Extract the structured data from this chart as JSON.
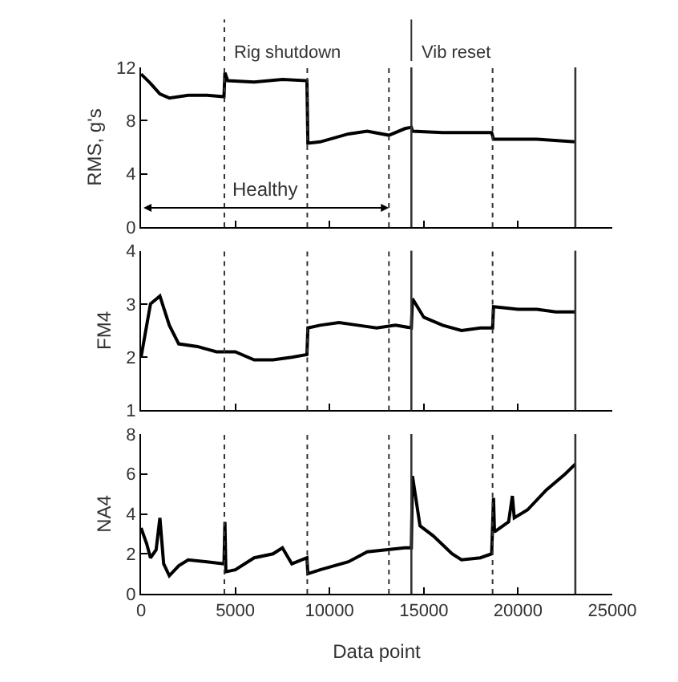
{
  "chart_data": [
    {
      "type": "line",
      "ylabel": "RMS, g's",
      "xlim": [
        0,
        25000
      ],
      "xticks": [
        {
          "value": 0,
          "label": null
        },
        {
          "value": 5000,
          "label": null
        },
        {
          "value": 10000,
          "label": null
        },
        {
          "value": 15000,
          "label": null
        },
        {
          "value": 20000,
          "label": null
        },
        {
          "value": 25000,
          "label": null
        }
      ],
      "ylim": [
        0,
        12
      ],
      "yticks": [
        0,
        4,
        8,
        12
      ],
      "tick_labels": "y",
      "marker": "none",
      "line_style": "solid",
      "series": [
        {
          "color": "#000000",
          "x": [
            0,
            500,
            1000,
            1500,
            2500,
            3500,
            4400,
            4450,
            4600,
            6000,
            7500,
            8800,
            8850,
            9500,
            11000,
            12000,
            13150,
            14000,
            14340,
            14400,
            16000,
            18600,
            18700,
            21000,
            23040
          ],
          "values": [
            11.5,
            10.8,
            10.0,
            9.7,
            9.9,
            9.9,
            9.8,
            11.6,
            11.0,
            10.9,
            11.1,
            11.0,
            6.3,
            6.4,
            7.0,
            7.2,
            6.9,
            7.4,
            7.5,
            7.2,
            7.1,
            7.1,
            6.6,
            6.6,
            6.4
          ]
        }
      ],
      "ref_lines": [
        {
          "axis": "x",
          "value": 4420,
          "label": "Rig shutdown",
          "line_style": "dotted"
        },
        {
          "axis": "x",
          "value": 8820,
          "line_style": "dotted"
        },
        {
          "axis": "x",
          "value": 13150,
          "line_style": "dotted"
        },
        {
          "axis": "x",
          "value": 14340,
          "label": "Vib reset",
          "line_style": "solid"
        },
        {
          "axis": "x",
          "value": 18650,
          "line_style": "dotted"
        },
        {
          "axis": "x",
          "value": 23040,
          "line_style": "solid"
        }
      ],
      "annotations": [
        "Healthy"
      ]
    },
    {
      "type": "line",
      "ylabel": "FM4",
      "xlim": [
        0,
        25000
      ],
      "xticks": [
        {
          "value": 0,
          "label": null
        },
        {
          "value": 5000,
          "label": null
        },
        {
          "value": 10000,
          "label": null
        },
        {
          "value": 15000,
          "label": null
        },
        {
          "value": 20000,
          "label": null
        },
        {
          "value": 25000,
          "label": null
        }
      ],
      "ylim": [
        1,
        4
      ],
      "yticks": [
        1,
        2,
        3,
        4
      ],
      "tick_labels": "y",
      "marker": "none",
      "line_style": "solid",
      "series": [
        {
          "color": "#000000",
          "x": [
            0,
            500,
            1000,
            1500,
            2000,
            3000,
            4000,
            5000,
            6000,
            7000,
            8000,
            8800,
            8850,
            9500,
            10500,
            11500,
            12500,
            13500,
            14340,
            14400,
            15000,
            16000,
            17000,
            18000,
            18650,
            18700,
            20000,
            21000,
            22000,
            23040
          ],
          "values": [
            2.0,
            3.0,
            3.15,
            2.6,
            2.25,
            2.2,
            2.1,
            2.1,
            1.95,
            1.95,
            2.0,
            2.05,
            2.55,
            2.6,
            2.65,
            2.6,
            2.55,
            2.6,
            2.55,
            3.1,
            2.75,
            2.6,
            2.5,
            2.55,
            2.55,
            2.95,
            2.9,
            2.9,
            2.85,
            2.85
          ]
        }
      ],
      "ref_lines": [
        {
          "axis": "x",
          "value": 4420,
          "line_style": "dotted"
        },
        {
          "axis": "x",
          "value": 8820,
          "line_style": "dotted"
        },
        {
          "axis": "x",
          "value": 13150,
          "line_style": "dotted"
        },
        {
          "axis": "x",
          "value": 14340,
          "line_style": "solid"
        },
        {
          "axis": "x",
          "value": 18650,
          "line_style": "dotted"
        },
        {
          "axis": "x",
          "value": 23040,
          "line_style": "solid"
        }
      ]
    },
    {
      "type": "line",
      "ylabel": "NA4",
      "xlabel": "Data point",
      "xlim": [
        0,
        25000
      ],
      "xticks": [
        0,
        5000,
        10000,
        15000,
        20000,
        25000
      ],
      "ylim": [
        0,
        8
      ],
      "yticks": [
        0,
        2,
        4,
        6,
        8
      ],
      "marker": "none",
      "line_style": "solid",
      "series": [
        {
          "color": "#000000",
          "x": [
            0,
            300,
            500,
            800,
            1000,
            1200,
            1500,
            2000,
            2500,
            3500,
            4400,
            4450,
            4500,
            5000,
            6000,
            7000,
            7500,
            8000,
            8800,
            8850,
            9500,
            11000,
            12000,
            13000,
            14000,
            14340,
            14400,
            14800,
            15500,
            16500,
            17000,
            18000,
            18600,
            18700,
            18750,
            19500,
            19700,
            19800,
            20500,
            21500,
            22500,
            23040
          ],
          "values": [
            3.3,
            2.5,
            1.8,
            2.2,
            3.8,
            1.5,
            0.9,
            1.4,
            1.7,
            1.6,
            1.5,
            3.6,
            1.1,
            1.2,
            1.8,
            2.0,
            2.3,
            1.5,
            1.8,
            1.0,
            1.2,
            1.6,
            2.1,
            2.2,
            2.3,
            2.3,
            5.9,
            3.4,
            2.9,
            2.0,
            1.7,
            1.8,
            2.0,
            4.8,
            3.1,
            3.6,
            4.9,
            3.8,
            4.2,
            5.2,
            6.0,
            6.5
          ]
        }
      ],
      "ref_lines": [
        {
          "axis": "x",
          "value": 4420,
          "line_style": "dotted"
        },
        {
          "axis": "x",
          "value": 8820,
          "line_style": "dotted"
        },
        {
          "axis": "x",
          "value": 13150,
          "line_style": "dotted"
        },
        {
          "axis": "x",
          "value": 14340,
          "line_style": "solid"
        },
        {
          "axis": "x",
          "value": 18650,
          "line_style": "dotted"
        },
        {
          "axis": "x",
          "value": 23040,
          "line_style": "solid"
        }
      ]
    }
  ]
}
